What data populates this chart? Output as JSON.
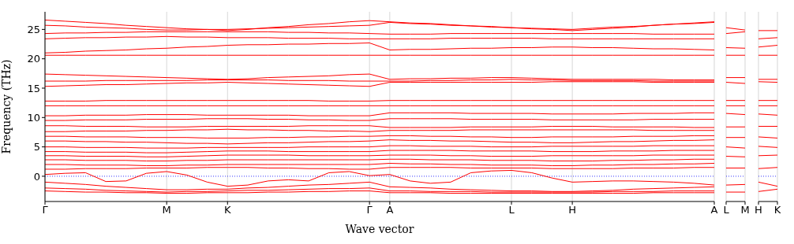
{
  "chart_data": [
    {
      "type": "line",
      "xlabel": "Wave vector",
      "ylabel": "Frequency (THz)",
      "grid": "x",
      "marker": "none",
      "line_style": "solid",
      "categories": [
        "Γ",
        null,
        null,
        null,
        null,
        null,
        "M",
        null,
        null,
        "K",
        null,
        null,
        null,
        null,
        null,
        null,
        "Γ",
        "A",
        null,
        null,
        null,
        null,
        null,
        "L",
        null,
        null,
        "H",
        null,
        null,
        null,
        null,
        null,
        null,
        "A"
      ],
      "ylim": [
        -4.3,
        28
      ],
      "yticks": [
        0,
        5,
        10,
        15,
        20,
        25
      ],
      "ref_lines": [
        {
          "axis": "y",
          "value": 0,
          "color": "#0000ff",
          "line_style": "dotted"
        }
      ],
      "series": [
        {
          "color": "#ff0000",
          "values": [
            26.6,
            26.4,
            26.2,
            26.0,
            25.7,
            25.5,
            25.3,
            25.1,
            25.0,
            24.8,
            25.0,
            25.3,
            25.5,
            25.8,
            26.0,
            26.3,
            26.5,
            26.3,
            26.1,
            26.0,
            25.8,
            25.6,
            25.5,
            25.3,
            25.1,
            25.0,
            24.8,
            25.0,
            25.2,
            25.4,
            25.7,
            25.9,
            26.1,
            26.3
          ]
        },
        {
          "color": "#ff0000",
          "values": [
            25.7,
            25.6,
            25.4,
            25.3,
            25.2,
            25.0,
            24.9,
            24.9,
            25.0,
            25.0,
            25.1,
            25.2,
            25.3,
            25.4,
            25.5,
            25.6,
            25.7,
            26.2,
            26.0,
            25.9,
            25.7,
            25.6,
            25.4,
            25.3,
            25.2,
            25.1,
            25.0,
            25.2,
            25.4,
            25.5,
            25.7,
            25.9,
            26.0,
            26.2
          ]
        },
        {
          "color": "#ff0000",
          "values": [
            24.3,
            24.4,
            24.4,
            24.5,
            24.5,
            24.6,
            24.6,
            24.6,
            24.6,
            24.6,
            24.6,
            24.6,
            24.5,
            24.5,
            24.4,
            24.4,
            24.3,
            24.2,
            24.2,
            24.2,
            24.3,
            24.3,
            24.3,
            24.3,
            24.3,
            24.3,
            24.3,
            24.3,
            24.3,
            24.3,
            24.2,
            24.2,
            24.2,
            24.2
          ]
        },
        {
          "color": "#ff0000",
          "values": [
            23.4,
            23.5,
            23.6,
            23.6,
            23.7,
            23.7,
            23.8,
            23.7,
            23.7,
            23.6,
            23.6,
            23.6,
            23.5,
            23.5,
            23.5,
            23.4,
            23.4,
            23.4,
            23.4,
            23.4,
            23.5,
            23.5,
            23.5,
            23.5,
            23.5,
            23.4,
            23.4,
            23.4,
            23.4,
            23.4,
            23.4,
            23.4,
            23.4,
            23.4
          ]
        },
        {
          "color": "#ff0000",
          "values": [
            21.0,
            21.1,
            21.3,
            21.4,
            21.5,
            21.7,
            21.8,
            22.0,
            22.1,
            22.3,
            22.4,
            22.4,
            22.5,
            22.5,
            22.6,
            22.6,
            22.7,
            21.5,
            21.6,
            21.6,
            21.7,
            21.8,
            21.8,
            21.9,
            21.9,
            22.0,
            22.0,
            21.9,
            21.9,
            21.8,
            21.7,
            21.7,
            21.6,
            21.5
          ]
        },
        {
          "color": "#ff0000",
          "values": [
            20.6,
            20.6,
            20.6,
            20.6,
            20.6,
            20.6,
            20.6,
            20.6,
            20.6,
            20.6,
            20.6,
            20.6,
            20.6,
            20.6,
            20.6,
            20.6,
            20.6,
            20.6,
            20.6,
            20.6,
            20.6,
            20.6,
            20.6,
            20.6,
            20.6,
            20.6,
            20.6,
            20.6,
            20.6,
            20.6,
            20.6,
            20.6,
            20.6,
            20.6
          ]
        },
        {
          "color": "#ff0000",
          "values": [
            17.4,
            17.3,
            17.2,
            17.1,
            17.0,
            16.9,
            16.8,
            16.7,
            16.6,
            16.5,
            16.6,
            16.8,
            16.9,
            17.0,
            17.1,
            17.3,
            17.4,
            16.5,
            16.6,
            16.6,
            16.7,
            16.7,
            16.8,
            16.8,
            16.7,
            16.6,
            16.5,
            16.5,
            16.5,
            16.5,
            16.5,
            16.4,
            16.4,
            16.4
          ]
        },
        {
          "color": "#ff0000",
          "values": [
            16.2,
            16.2,
            16.2,
            16.3,
            16.3,
            16.3,
            16.3,
            16.3,
            16.4,
            16.4,
            16.4,
            16.4,
            16.3,
            16.3,
            16.3,
            16.2,
            16.2,
            16.2,
            16.2,
            16.3,
            16.3,
            16.4,
            16.4,
            16.5,
            16.4,
            16.4,
            16.3,
            16.3,
            16.3,
            16.3,
            16.2,
            16.2,
            16.2,
            16.2
          ]
        },
        {
          "color": "#ff0000",
          "values": [
            15.3,
            15.4,
            15.5,
            15.6,
            15.6,
            15.7,
            15.8,
            15.9,
            15.9,
            16.0,
            15.9,
            15.8,
            15.7,
            15.6,
            15.5,
            15.4,
            15.3,
            16.0,
            16.0,
            16.0,
            16.0,
            16.0,
            16.0,
            16.0,
            16.0,
            16.1,
            16.1,
            16.1,
            16.1,
            16.1,
            16.0,
            16.0,
            16.0,
            16.0
          ]
        },
        {
          "color": "#ff0000",
          "values": [
            12.8,
            12.8,
            12.8,
            12.9,
            12.9,
            12.9,
            12.9,
            12.9,
            12.9,
            12.9,
            12.9,
            12.9,
            12.9,
            12.9,
            12.8,
            12.8,
            12.8,
            12.9,
            12.9,
            12.9,
            12.9,
            12.9,
            12.9,
            12.9,
            12.9,
            12.9,
            12.9,
            12.9,
            12.9,
            12.9,
            12.9,
            12.9,
            12.9,
            12.9
          ]
        },
        {
          "color": "#ff0000",
          "values": [
            12.0,
            12.0,
            12.0,
            12.0,
            12.0,
            12.0,
            12.0,
            12.0,
            12.0,
            12.0,
            12.0,
            12.0,
            12.0,
            12.0,
            12.0,
            12.0,
            12.0,
            12.0,
            12.0,
            12.0,
            12.0,
            12.0,
            12.0,
            12.0,
            12.0,
            12.0,
            12.0,
            12.0,
            12.0,
            12.0,
            12.0,
            12.0,
            12.0,
            12.0
          ]
        },
        {
          "color": "#ff0000",
          "values": [
            10.3,
            10.3,
            10.4,
            10.4,
            10.4,
            10.5,
            10.5,
            10.5,
            10.4,
            10.4,
            10.4,
            10.4,
            10.4,
            10.3,
            10.3,
            10.3,
            10.3,
            10.8,
            10.8,
            10.8,
            10.8,
            10.7,
            10.7,
            10.7,
            10.7,
            10.6,
            10.6,
            10.6,
            10.6,
            10.7,
            10.7,
            10.7,
            10.8,
            10.8
          ]
        },
        {
          "color": "#ff0000",
          "values": [
            9.5,
            9.5,
            9.6,
            9.6,
            9.6,
            9.7,
            9.7,
            9.7,
            9.8,
            9.8,
            9.8,
            9.7,
            9.7,
            9.6,
            9.6,
            9.5,
            9.5,
            9.8,
            9.8,
            9.8,
            9.8,
            9.7,
            9.7,
            9.7,
            9.7,
            9.6,
            9.6,
            9.6,
            9.6,
            9.6,
            9.7,
            9.7,
            9.7,
            9.7
          ]
        },
        {
          "color": "#ff0000",
          "values": [
            8.6,
            8.6,
            8.5,
            8.5,
            8.5,
            8.4,
            8.4,
            8.4,
            8.5,
            8.5,
            8.5,
            8.5,
            8.5,
            8.6,
            8.6,
            8.6,
            8.6,
            8.3,
            8.3,
            8.3,
            8.3,
            8.4,
            8.4,
            8.4,
            8.4,
            8.5,
            8.5,
            8.5,
            8.4,
            8.4,
            8.4,
            8.4,
            8.3,
            8.3
          ]
        },
        {
          "color": "#ff0000",
          "values": [
            7.6,
            7.6,
            7.7,
            7.7,
            7.7,
            7.8,
            7.8,
            7.9,
            7.9,
            8.0,
            7.9,
            7.9,
            7.8,
            7.8,
            7.7,
            7.7,
            7.6,
            7.8,
            7.8,
            7.8,
            7.8,
            7.9,
            7.9,
            7.9,
            7.9,
            7.9,
            7.9,
            7.9,
            7.9,
            7.9,
            7.8,
            7.8,
            7.8,
            7.8
          ]
        },
        {
          "color": "#ff0000",
          "values": [
            6.8,
            6.8,
            6.7,
            6.7,
            6.7,
            6.6,
            6.6,
            6.6,
            6.5,
            6.5,
            6.5,
            6.6,
            6.6,
            6.7,
            6.7,
            6.8,
            6.8,
            6.9,
            6.9,
            6.8,
            6.8,
            6.7,
            6.7,
            6.6,
            6.6,
            6.7,
            6.7,
            6.7,
            6.7,
            6.8,
            6.8,
            6.8,
            6.9,
            6.9
          ]
        },
        {
          "color": "#ff0000",
          "values": [
            6.0,
            6.0,
            5.9,
            5.9,
            5.8,
            5.8,
            5.7,
            5.6,
            5.6,
            5.5,
            5.6,
            5.7,
            5.7,
            5.8,
            5.9,
            5.9,
            6.0,
            6.2,
            6.1,
            6.1,
            6.0,
            6.0,
            5.9,
            5.8,
            5.8,
            5.7,
            5.7,
            5.8,
            5.9,
            5.9,
            6.0,
            6.1,
            6.1,
            6.2
          ]
        },
        {
          "color": "#ff0000",
          "values": [
            5.0,
            5.0,
            4.9,
            4.9,
            4.9,
            4.8,
            4.8,
            4.8,
            4.9,
            4.9,
            4.9,
            4.9,
            4.9,
            5.0,
            5.0,
            5.0,
            5.0,
            5.2,
            5.2,
            5.1,
            5.1,
            5.1,
            5.0,
            5.0,
            5.0,
            5.1,
            5.1,
            5.1,
            5.1,
            5.1,
            5.2,
            5.2,
            5.2,
            5.2
          ]
        },
        {
          "color": "#ff0000",
          "values": [
            4.2,
            4.2,
            4.1,
            4.1,
            4.1,
            4.0,
            4.0,
            4.1,
            4.2,
            4.3,
            4.3,
            4.3,
            4.2,
            4.2,
            4.2,
            4.2,
            4.2,
            4.4,
            4.4,
            4.4,
            4.4,
            4.3,
            4.3,
            4.3,
            4.3,
            4.2,
            4.2,
            4.2,
            4.3,
            4.3,
            4.3,
            4.4,
            4.4,
            4.4
          ]
        },
        {
          "color": "#ff0000",
          "values": [
            3.5,
            3.5,
            3.4,
            3.4,
            3.4,
            3.3,
            3.3,
            3.4,
            3.5,
            3.6,
            3.6,
            3.6,
            3.6,
            3.5,
            3.5,
            3.5,
            3.5,
            3.6,
            3.6,
            3.6,
            3.5,
            3.5,
            3.4,
            3.4,
            3.4,
            3.5,
            3.5,
            3.5,
            3.5,
            3.5,
            3.6,
            3.6,
            3.6,
            3.6
          ]
        },
        {
          "color": "#ff0000",
          "values": [
            2.8,
            2.8,
            2.7,
            2.7,
            2.7,
            2.6,
            2.6,
            2.7,
            2.7,
            2.8,
            2.8,
            2.8,
            2.8,
            2.8,
            2.8,
            2.8,
            2.8,
            2.9,
            2.9,
            2.8,
            2.8,
            2.8,
            2.7,
            2.7,
            2.7,
            2.6,
            2.6,
            2.6,
            2.7,
            2.7,
            2.8,
            2.8,
            2.9,
            2.9
          ]
        },
        {
          "color": "#ff0000",
          "values": [
            2.0,
            2.0,
            1.9,
            1.9,
            1.9,
            1.8,
            1.8,
            1.9,
            1.9,
            2.0,
            2.0,
            2.0,
            2.0,
            2.0,
            2.0,
            2.0,
            2.0,
            2.2,
            2.1,
            2.1,
            2.0,
            2.0,
            1.9,
            1.9,
            1.9,
            1.8,
            1.8,
            1.9,
            1.9,
            2.0,
            2.0,
            2.1,
            2.1,
            2.2
          ]
        },
        {
          "color": "#ff0000",
          "values": [
            1.2,
            1.2,
            1.3,
            1.3,
            1.3,
            1.4,
            1.4,
            1.4,
            1.5,
            1.5,
            1.5,
            1.4,
            1.4,
            1.3,
            1.3,
            1.2,
            1.2,
            1.5,
            1.5,
            1.5,
            1.5,
            1.4,
            1.4,
            1.4,
            1.4,
            1.3,
            1.3,
            1.3,
            1.3,
            1.4,
            1.4,
            1.4,
            1.5,
            1.5
          ]
        },
        {
          "color": "#ff0000",
          "values": [
            0.3,
            0.5,
            0.6,
            -0.9,
            -0.8,
            0.5,
            0.8,
            0.2,
            -1.0,
            -1.7,
            -1.5,
            -0.8,
            -0.6,
            -0.8,
            0.6,
            0.8,
            0.1,
            0.3,
            -0.8,
            -1.2,
            -1.0,
            0.6,
            0.9,
            1.0,
            0.6,
            -0.3,
            -1.0,
            -0.9,
            -0.8,
            -0.8,
            -0.9,
            -1.0,
            -1.2,
            -1.5
          ]
        },
        {
          "color": "#ff0000",
          "values": [
            -1.0,
            -1.2,
            -1.4,
            -1.7,
            -1.9,
            -2.1,
            -2.3,
            -2.3,
            -2.2,
            -2.2,
            -2.0,
            -1.9,
            -1.7,
            -1.5,
            -1.4,
            -1.2,
            -1.0,
            -1.8,
            -1.9,
            -2.0,
            -2.2,
            -2.3,
            -2.4,
            -2.5,
            -2.5,
            -2.6,
            -2.6,
            -2.5,
            -2.4,
            -2.2,
            -2.1,
            -2.0,
            -1.9,
            -1.8
          ]
        },
        {
          "color": "#ff0000",
          "values": [
            -2.0,
            -2.1,
            -2.2,
            -2.4,
            -2.5,
            -2.6,
            -2.7,
            -2.6,
            -2.6,
            -2.5,
            -2.4,
            -2.4,
            -2.3,
            -2.2,
            -2.1,
            -2.1,
            -2.0,
            -2.5,
            -2.5,
            -2.6,
            -2.6,
            -2.6,
            -2.7,
            -2.7,
            -2.7,
            -2.7,
            -2.7,
            -2.7,
            -2.6,
            -2.6,
            -2.6,
            -2.5,
            -2.5,
            -2.5
          ]
        },
        {
          "color": "#ff0000",
          "values": [
            -2.5,
            -2.6,
            -2.7,
            -2.7,
            -2.8,
            -2.8,
            -2.9,
            -2.9,
            -2.8,
            -2.8,
            -2.8,
            -2.7,
            -2.7,
            -2.6,
            -2.6,
            -2.5,
            -2.5,
            -2.8,
            -2.8,
            -2.8,
            -2.9,
            -2.9,
            -2.9,
            -2.9,
            -2.9,
            -2.9,
            -2.9,
            -2.9,
            -2.9,
            -2.9,
            -2.8,
            -2.8,
            -2.8,
            -2.8
          ]
        }
      ]
    },
    {
      "type": "line",
      "grid": "x",
      "marker": "none",
      "line_style": "solid",
      "tick_labels": "x",
      "categories": [
        "L",
        "M"
      ],
      "ylim": [
        -4.3,
        28
      ],
      "yticks": [
        0,
        5,
        10,
        15,
        20,
        25
      ],
      "ref_lines": [
        {
          "axis": "y",
          "value": 0,
          "color": "#0000ff",
          "line_style": "dotted"
        }
      ],
      "series": [
        {
          "color": "#ff0000",
          "values": [
            25.3,
            24.9
          ]
        },
        {
          "color": "#ff0000",
          "values": [
            24.3,
            24.6
          ]
        },
        {
          "color": "#ff0000",
          "values": [
            21.9,
            21.8
          ]
        },
        {
          "color": "#ff0000",
          "values": [
            20.6,
            20.6
          ]
        },
        {
          "color": "#ff0000",
          "values": [
            16.8,
            16.8
          ]
        },
        {
          "color": "#ff0000",
          "values": [
            16.0,
            15.8
          ]
        },
        {
          "color": "#ff0000",
          "values": [
            12.9,
            12.9
          ]
        },
        {
          "color": "#ff0000",
          "values": [
            12.0,
            12.0
          ]
        },
        {
          "color": "#ff0000",
          "values": [
            10.7,
            10.5
          ]
        },
        {
          "color": "#ff0000",
          "values": [
            8.4,
            8.4
          ]
        },
        {
          "color": "#ff0000",
          "values": [
            6.6,
            6.6
          ]
        },
        {
          "color": "#ff0000",
          "values": [
            5.0,
            4.8
          ]
        },
        {
          "color": "#ff0000",
          "values": [
            3.4,
            3.3
          ]
        },
        {
          "color": "#ff0000",
          "values": [
            1.4,
            1.4
          ]
        },
        {
          "color": "#ff0000",
          "values": [
            -1.5,
            -1.4
          ]
        },
        {
          "color": "#ff0000",
          "values": [
            -2.7,
            -2.7
          ]
        }
      ]
    },
    {
      "type": "line",
      "grid": "x",
      "marker": "none",
      "line_style": "solid",
      "tick_labels": "x",
      "categories": [
        "H",
        "K"
      ],
      "ylim": [
        -4.3,
        28
      ],
      "yticks": [
        0,
        5,
        10,
        15,
        20,
        25
      ],
      "ref_lines": [
        {
          "axis": "y",
          "value": 0,
          "color": "#0000ff",
          "line_style": "dotted"
        }
      ],
      "series": [
        {
          "color": "#ff0000",
          "values": [
            24.8,
            24.8
          ]
        },
        {
          "color": "#ff0000",
          "values": [
            23.4,
            23.6
          ]
        },
        {
          "color": "#ff0000",
          "values": [
            22.0,
            22.3
          ]
        },
        {
          "color": "#ff0000",
          "values": [
            20.6,
            20.6
          ]
        },
        {
          "color": "#ff0000",
          "values": [
            16.5,
            16.5
          ]
        },
        {
          "color": "#ff0000",
          "values": [
            16.1,
            16.0
          ]
        },
        {
          "color": "#ff0000",
          "values": [
            12.9,
            12.9
          ]
        },
        {
          "color": "#ff0000",
          "values": [
            12.0,
            12.0
          ]
        },
        {
          "color": "#ff0000",
          "values": [
            10.6,
            10.4
          ]
        },
        {
          "color": "#ff0000",
          "values": [
            8.5,
            8.5
          ]
        },
        {
          "color": "#ff0000",
          "values": [
            6.7,
            6.5
          ]
        },
        {
          "color": "#ff0000",
          "values": [
            5.1,
            4.9
          ]
        },
        {
          "color": "#ff0000",
          "values": [
            3.5,
            3.6
          ]
        },
        {
          "color": "#ff0000",
          "values": [
            1.3,
            1.5
          ]
        },
        {
          "color": "#ff0000",
          "values": [
            -1.0,
            -1.7
          ]
        },
        {
          "color": "#ff0000",
          "values": [
            -2.6,
            -2.2
          ]
        }
      ]
    }
  ]
}
